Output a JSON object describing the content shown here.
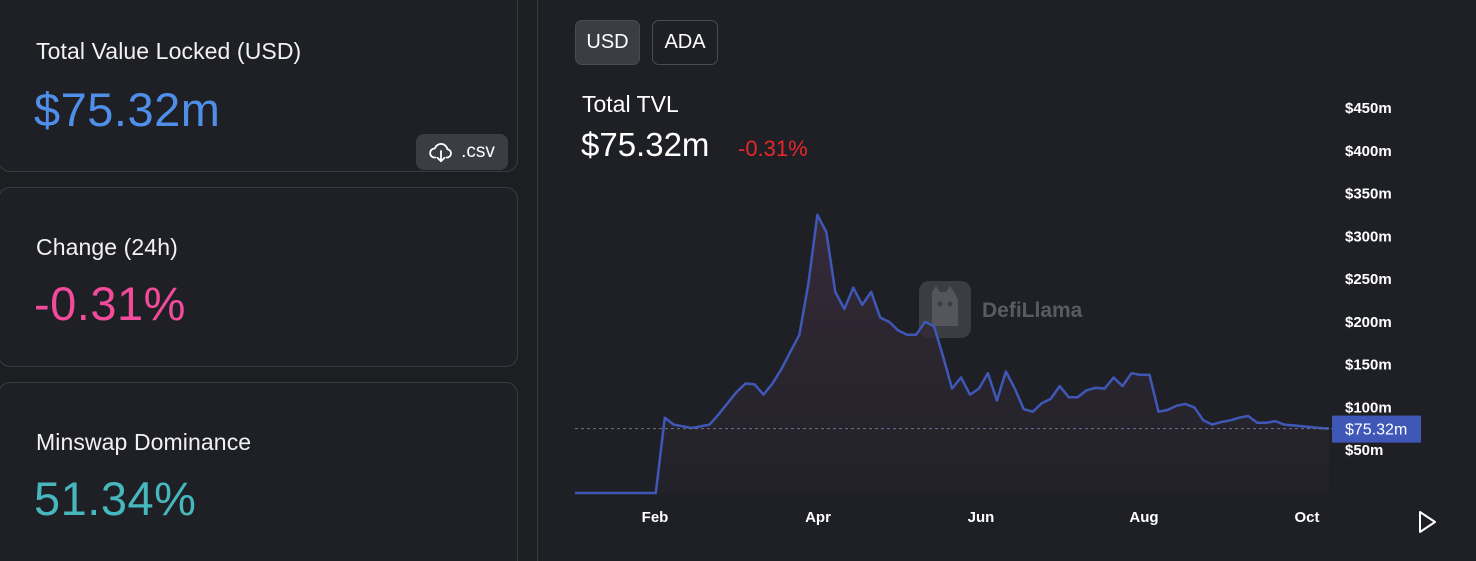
{
  "stats": {
    "tvl": {
      "label": "Total Value Locked (USD)",
      "value": "$75.32m"
    },
    "change": {
      "label": "Change (24h)",
      "value": "-0.31%"
    },
    "dominance": {
      "label": "Minswap Dominance",
      "value": "51.34%"
    },
    "csv_label": ".csv"
  },
  "chart_panel": {
    "toggles": [
      "USD",
      "ADA"
    ],
    "active_toggle": "USD",
    "title": "Total TVL",
    "value": "$75.32m",
    "change": "-0.31%",
    "watermark": "DefiLlama",
    "current_label": "$75.32m"
  },
  "colors": {
    "tvl": "#4f8fea",
    "change": "#f24b9b",
    "dominance": "#46b8bd",
    "negative": "#e8272b",
    "series": "#3f58b8",
    "current_marker": "#3f58b8"
  },
  "icons": [
    "cloud-download-icon",
    "play-icon",
    "defillama-logo-icon"
  ],
  "chart_data": {
    "type": "area",
    "title": "",
    "xlabel": "",
    "ylabel": "",
    "x_tick_labels": [
      "Feb",
      "Apr",
      "Jun",
      "Aug",
      "Oct"
    ],
    "y_tick_labels": [
      "$50m",
      "$100m",
      "$150m",
      "$200m",
      "$250m",
      "$300m",
      "$350m",
      "$400m",
      "$450m"
    ],
    "ylim": [
      0,
      450
    ],
    "y_unit": "$m",
    "grid": false,
    "current_value": 75.32,
    "series": [
      {
        "values": [
          0,
          0,
          0,
          0,
          0,
          0,
          0,
          0,
          0,
          0,
          88,
          80,
          78,
          76,
          78,
          80,
          92,
          105,
          118,
          128,
          127,
          115,
          128,
          145,
          165,
          185,
          245,
          325,
          305,
          235,
          215,
          240,
          220,
          235,
          205,
          200,
          190,
          185,
          185,
          200,
          195,
          160,
          122,
          135,
          115,
          122,
          140,
          108,
          142,
          122,
          98,
          95,
          105,
          110,
          125,
          112,
          112,
          120,
          123,
          122,
          135,
          125,
          140,
          138,
          138,
          95,
          97,
          102,
          104,
          100,
          85,
          80,
          83,
          85,
          88,
          90,
          82,
          82,
          84,
          80,
          79,
          78,
          77,
          76,
          75.32
        ]
      }
    ]
  }
}
